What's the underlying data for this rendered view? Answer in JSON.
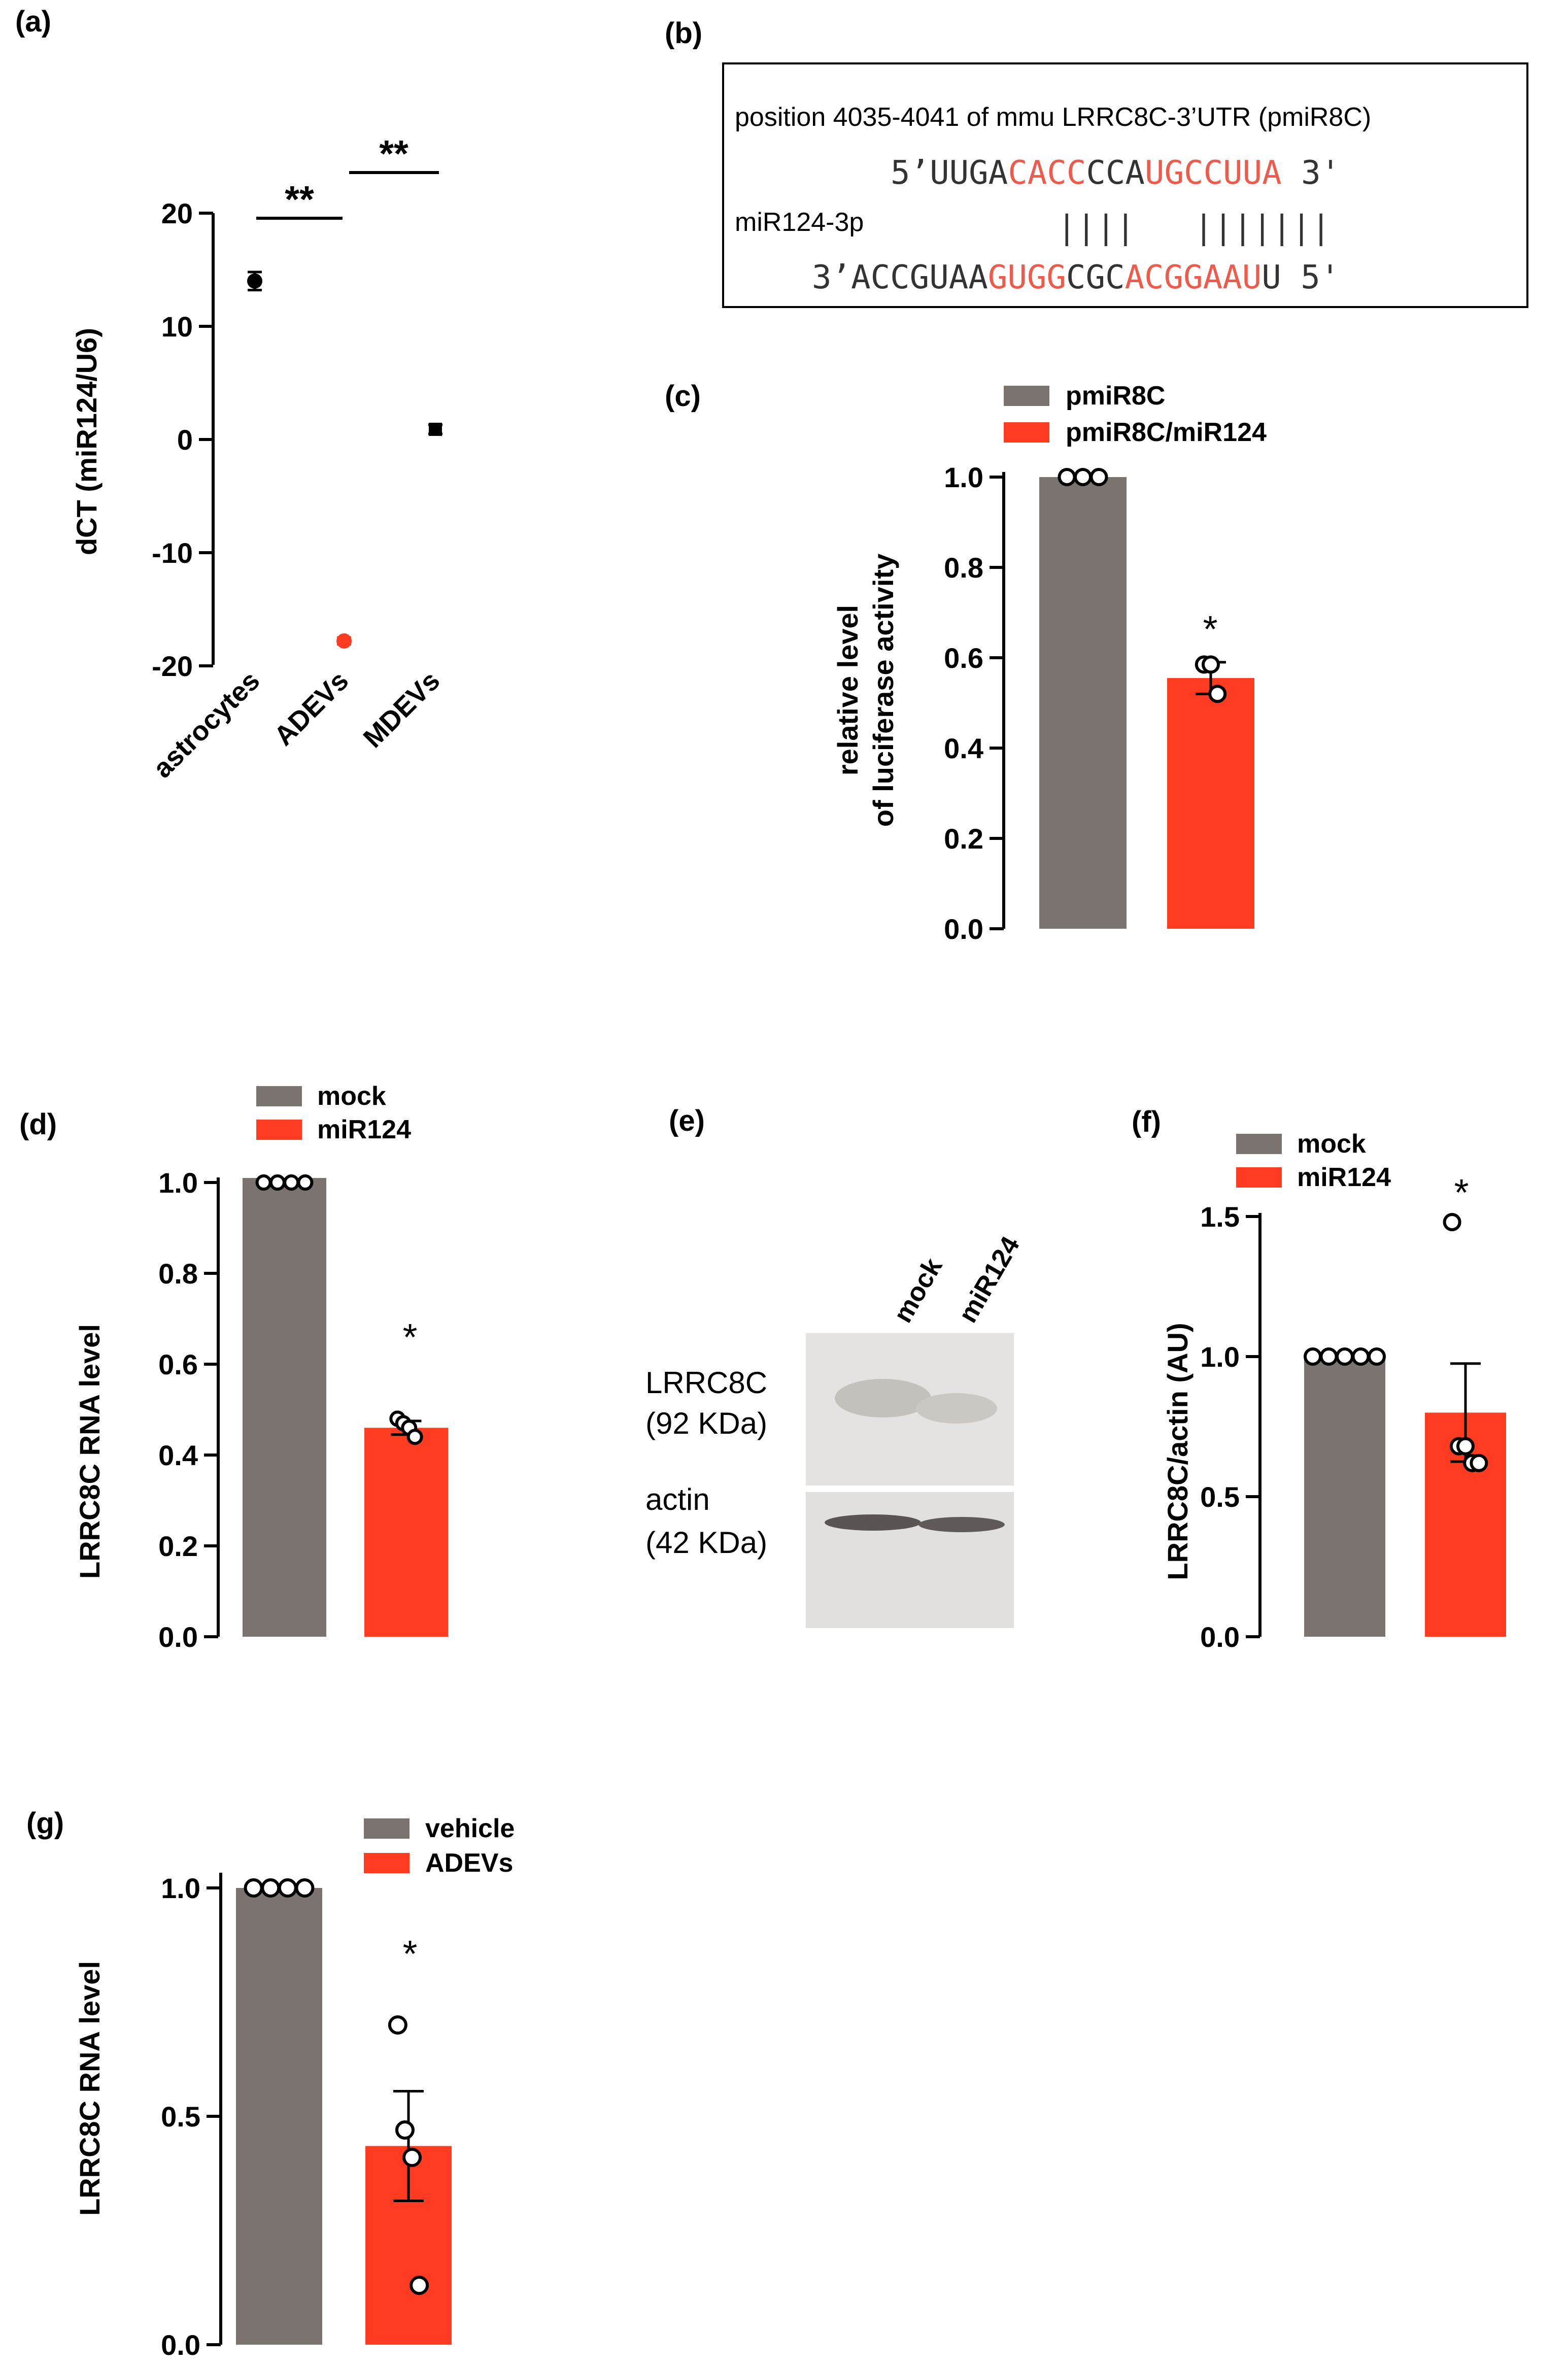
{
  "colors": {
    "grey": "#7b7370",
    "red": "#ff3b21",
    "pink": "#f05a4a",
    "black": "#000000"
  },
  "chart_data": [
    {
      "panel": "(a)",
      "type": "scatter",
      "ylabel": "dCT (miR124/U6)",
      "ylim": [
        -20,
        20
      ],
      "yticks": [
        "-20",
        "-10",
        "0",
        "10",
        "20"
      ],
      "ytick_values": [
        -20,
        -10,
        0,
        10,
        20
      ],
      "categories": [
        "astrocytes",
        "ADEVs",
        "MDEVs"
      ],
      "points": [
        {
          "category": "astrocytes",
          "mean": 14,
          "err": 0.8,
          "color": "black"
        },
        {
          "category": "ADEVs",
          "mean": -17.8,
          "err": 0.3,
          "color": "red"
        },
        {
          "category": "MDEVs",
          "mean": 0.9,
          "err": 0.4,
          "color": "black"
        }
      ],
      "significance": [
        {
          "pair": [
            "astrocytes",
            "ADEVs"
          ],
          "label": "**"
        },
        {
          "pair": [
            "ADEVs",
            "MDEVs"
          ],
          "label": "**"
        }
      ]
    },
    {
      "panel": "(c)",
      "type": "bar",
      "ylabel": [
        "relative level",
        "of luciferase activity"
      ],
      "ylim": [
        0,
        1.0
      ],
      "yticks": [
        "0.0",
        "0.2",
        "0.4",
        "0.6",
        "0.8",
        "1.0"
      ],
      "ytick_values": [
        0,
        0.2,
        0.4,
        0.6,
        0.8,
        1.0
      ],
      "series": [
        {
          "name": "pmiR8C",
          "value": 1.0,
          "sem": 0,
          "points": [
            1.0,
            1.0,
            1.0
          ]
        },
        {
          "name": "pmiR8C/miR124",
          "value": 0.555,
          "sem": 0.035,
          "points": [
            0.585,
            0.585,
            0.52
          ]
        }
      ],
      "significance": "*"
    },
    {
      "panel": "(d)",
      "type": "bar",
      "ylabel": "LRRC8C RNA level",
      "ylim": [
        0,
        1.0
      ],
      "yticks": [
        "0.0",
        "0.2",
        "0.4",
        "0.6",
        "0.8",
        "1.0"
      ],
      "ytick_values": [
        0,
        0.2,
        0.4,
        0.6,
        0.8,
        1.0
      ],
      "series": [
        {
          "name": "mock",
          "value": 1.01,
          "sem": 0,
          "points": [
            1.0,
            1.0,
            1.0,
            1.0
          ]
        },
        {
          "name": "miR124",
          "value": 0.46,
          "sem": 0.015,
          "points": [
            0.48,
            0.47,
            0.46,
            0.44
          ]
        }
      ],
      "significance": "*"
    },
    {
      "panel": "(f)",
      "type": "bar",
      "ylabel": "LRRC8C/actin (AU)",
      "ylim": [
        0,
        1.5
      ],
      "yticks": [
        "0.0",
        "0.5",
        "1.0",
        "1.5"
      ],
      "ytick_values": [
        0,
        0.5,
        1.0,
        1.5
      ],
      "series": [
        {
          "name": "mock",
          "value": 1.0,
          "sem": 0,
          "points": [
            1.0,
            1.0,
            1.0,
            1.0,
            1.0
          ]
        },
        {
          "name": "miR124",
          "value": 0.8,
          "sem": 0.175,
          "points": [
            1.48,
            0.68,
            0.68,
            0.62,
            0.62
          ]
        }
      ],
      "significance": "*"
    },
    {
      "panel": "(g)",
      "type": "bar",
      "ylabel": "LRRC8C RNA level",
      "ylim": [
        0,
        1.0
      ],
      "yticks": [
        "0.0",
        "0.5",
        "1.0"
      ],
      "ytick_values": [
        0,
        0.5,
        1.0
      ],
      "series": [
        {
          "name": "vehicle",
          "value": 1.0,
          "sem": 0,
          "points": [
            1.0,
            1.0,
            1.0,
            1.0
          ]
        },
        {
          "name": "ADEVs",
          "value": 0.435,
          "sem": 0.12,
          "points": [
            0.7,
            0.47,
            0.41,
            0.13
          ]
        }
      ],
      "significance": "*"
    }
  ],
  "panel_b": {
    "label": "(b)",
    "title": "position 4035-4041  of mmu LRRC8C-3’UTR (pmiR8C)",
    "mirna_label": "miR124-3p",
    "utr_prefix": "5’UUGA",
    "utr_seed1": "CACC",
    "utr_mid": "CCA",
    "utr_seed2": "UGCCUUA",
    "utr_suffix": " 3'",
    "pairing": "||||   |||||||",
    "mir_prefix": "3’ACCGUAA",
    "mir_seed1": "GUGG",
    "mir_mid": "CGC",
    "mir_seed2": "ACGGAAU",
    "mir_suffix": "U 5'"
  },
  "panel_e": {
    "label": "(e)",
    "lanes": [
      "mock",
      "miR124"
    ],
    "band1_label": "LRRC8C",
    "band1_size": "(92 KDa)",
    "band2_label": "actin",
    "band2_size": "(42 KDa)"
  }
}
